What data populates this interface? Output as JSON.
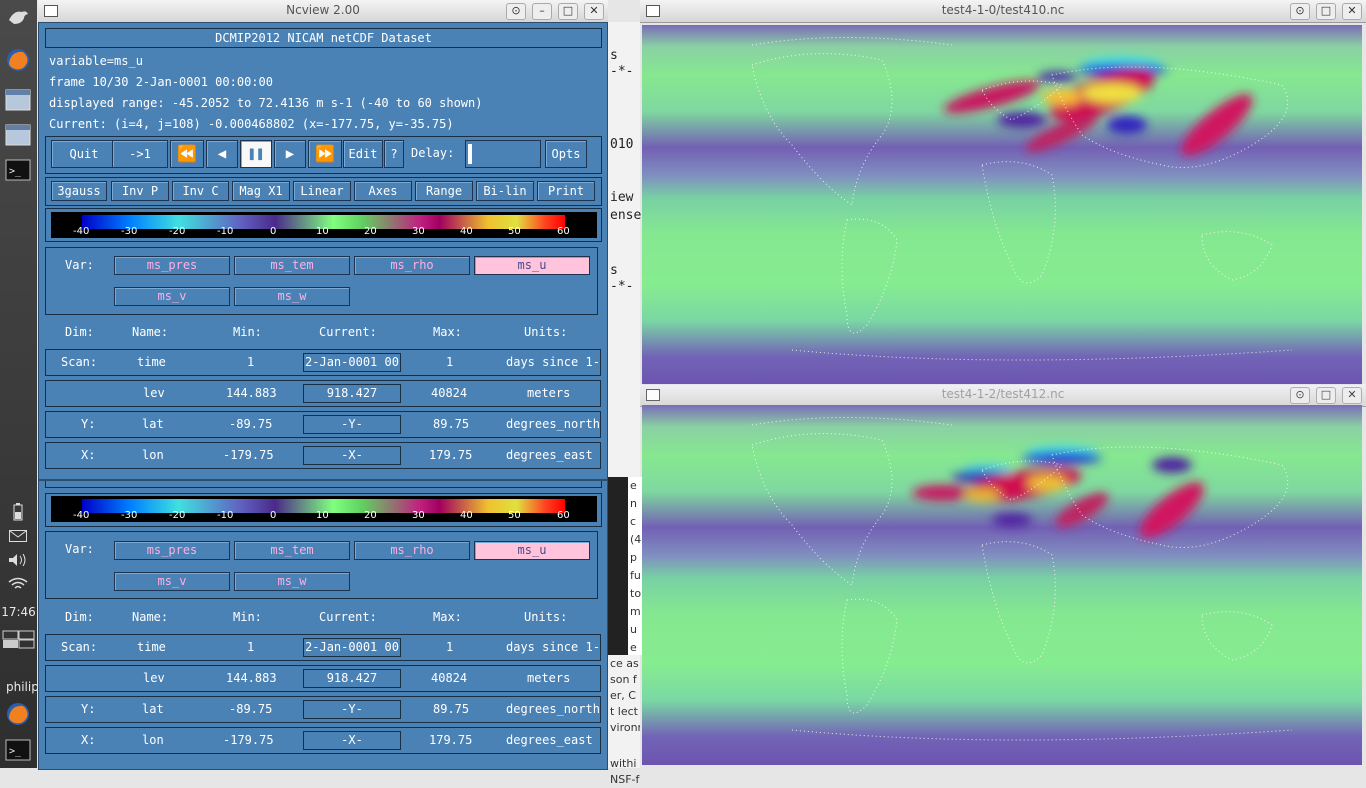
{
  "taskbar": {
    "clock": "17:46",
    "user": "philip"
  },
  "windows": {
    "ncview_title": "Ncview 2.00",
    "map1_title": "test4-1-0/test410.nc",
    "map2_title": "test4-1-2/test412.nc"
  },
  "ncview": {
    "dataset": "DCMIP2012 NICAM netCDF Dataset",
    "variable": "variable=ms_u",
    "frame": "frame 10/30 2-Jan-0001 00:00:00",
    "range": "displayed range: -45.2052 to 72.4136 m s-1 (-40 to 60 shown)",
    "current": "Current: (i=4, j=108) -0.000468802 (x=-177.75, y=-35.75)",
    "controls": {
      "quit": "Quit",
      "to1": "->1",
      "rew": "⏪",
      "back": "◀",
      "pause": "⏸",
      "fwd": "▶",
      "ff": "⏩",
      "edit": "Edit",
      "help": "?",
      "delay": "Delay:",
      "opts": "Opts"
    },
    "options": [
      "3gauss",
      "Inv P",
      "Inv C",
      "Mag X1",
      "Linear",
      "Axes",
      "Range",
      "Bi-lin",
      "Print"
    ],
    "colorbar_ticks": [
      "-40",
      "-30",
      "-20",
      "-10",
      "0",
      "10",
      "20",
      "30",
      "40",
      "50",
      "60"
    ],
    "var_label": "Var:",
    "vars": [
      "ms_pres",
      "ms_tem",
      "ms_rho",
      "ms_u",
      "ms_v",
      "ms_w"
    ],
    "selected_var": "ms_u",
    "dim_headers": [
      "Dim:",
      "Name:",
      "Min:",
      "Current:",
      "Max:",
      "Units:"
    ],
    "dims": [
      {
        "dim": "Scan:",
        "name": "time",
        "min": "1",
        "current": "2-Jan-0001 00",
        "max": "1",
        "units": "days since 1-"
      },
      {
        "dim": "",
        "name": "lev",
        "min": "144.883",
        "current": "918.427",
        "max": "40824",
        "units": "meters"
      },
      {
        "dim": "Y:",
        "name": "lat",
        "min": "-89.75",
        "current": "-Y-",
        "max": "89.75",
        "units": "degrees_north"
      },
      {
        "dim": "X:",
        "name": "lon",
        "min": "-179.75",
        "current": "-X-",
        "max": "179.75",
        "units": "degrees_east"
      }
    ]
  },
  "behind_text": {
    "a": "s",
    "b": "-*-",
    "c": "010",
    "d": "iew",
    "e": "ense",
    "f": "s",
    "g": "-*-",
    "p1": [
      "e",
      "n",
      "c",
      "(4",
      "p",
      "fu",
      "to",
      "m",
      "u",
      "e"
    ],
    "p2": [
      "ce as",
      "son f",
      "er, C",
      "t lect",
      "vironm"
    ],
    "p3": [
      "withi",
      "NSF-f"
    ]
  }
}
